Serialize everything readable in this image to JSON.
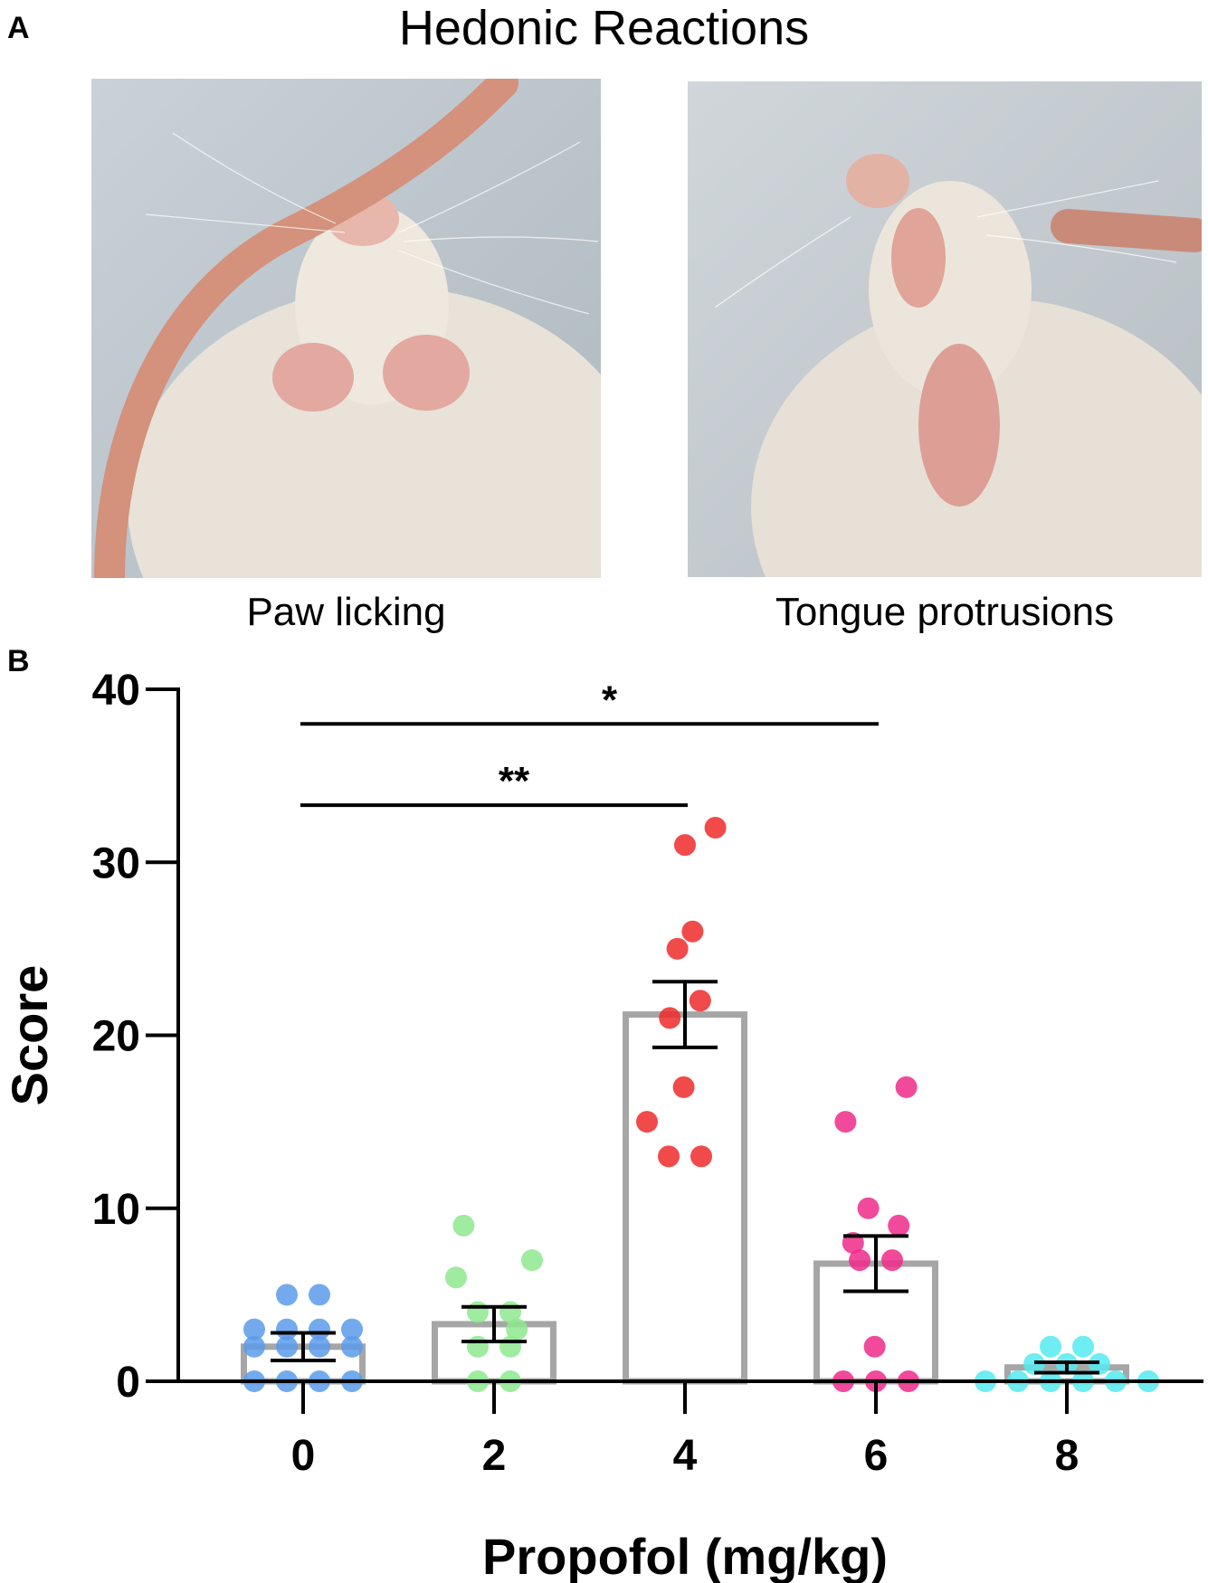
{
  "panel_a": {
    "letter": "A",
    "title": "Hedonic Reactions",
    "photos": [
      {
        "caption": "Paw licking"
      },
      {
        "caption": "Tongue protrusions"
      }
    ]
  },
  "panel_b": {
    "letter": "B"
  },
  "chart_data": {
    "type": "bar",
    "xlabel": "Propofol (mg/kg)",
    "ylabel": "Score",
    "categories": [
      "0",
      "2",
      "4",
      "6",
      "8"
    ],
    "ylim": [
      0,
      40
    ],
    "yticks": [
      "0",
      "10",
      "20",
      "30",
      "40"
    ],
    "means": [
      2.0,
      3.3,
      21.2,
      6.8,
      0.8
    ],
    "sem": [
      0.8,
      1.0,
      1.9,
      1.6,
      0.3
    ],
    "colors": {
      "bar_outline": "#a6a6a6",
      "groups": [
        "#5b9bea",
        "#8ee88e",
        "#ee2a2a",
        "#ee2a8a",
        "#55eaf0"
      ]
    },
    "points": [
      [
        5,
        5,
        3,
        3,
        3,
        3,
        2,
        2,
        2,
        2,
        0,
        0,
        0,
        0
      ],
      [
        9,
        7,
        6,
        4,
        4,
        3,
        2,
        2,
        0,
        0
      ],
      [
        32,
        31,
        26,
        25,
        22,
        21,
        17,
        15,
        13,
        13
      ],
      [
        17,
        15,
        10,
        9,
        8,
        7,
        7,
        2,
        0,
        0,
        0
      ],
      [
        2,
        2,
        1,
        1,
        1,
        0,
        0,
        0,
        0,
        0,
        0
      ]
    ],
    "significance": [
      {
        "from": "0",
        "to": "4",
        "label": "**",
        "y": 33.3
      },
      {
        "from": "0",
        "to": "6",
        "label": "*",
        "y": 38.0
      }
    ]
  }
}
